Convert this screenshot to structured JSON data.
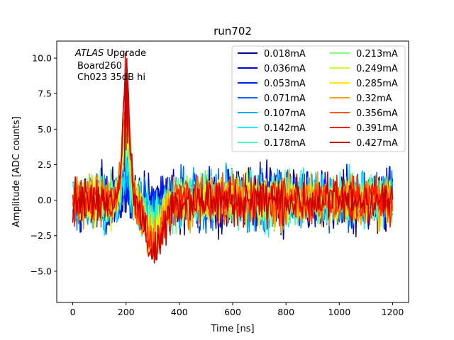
{
  "chart_data": {
    "type": "line",
    "title": "run702",
    "xlabel": "Time [ns]",
    "ylabel": "Amplitude [ADC counts]",
    "xlim": [
      -60,
      1260
    ],
    "ylim": [
      -7.2,
      11.2
    ],
    "xticks": [
      0,
      200,
      400,
      600,
      800,
      1000,
      1200
    ],
    "xtick_labels": [
      "0",
      "200",
      "400",
      "600",
      "800",
      "1000",
      "1200"
    ],
    "yticks": [
      -5.0,
      -2.5,
      0.0,
      2.5,
      5.0,
      7.5,
      10.0
    ],
    "ytick_labels": [
      "−5.0",
      "−2.5",
      "0.0",
      "2.5",
      "5.0",
      "7.5",
      "10.0"
    ],
    "grid": false,
    "legend_location": "upper right",
    "legend_columns": 2,
    "annotation": {
      "italic": "ATLAS",
      "normal": " Upgrade",
      "line2": "Board260",
      "line3": "Ch023 35dB hi"
    },
    "sample_period_ns": 3.125,
    "x_range": [
      0,
      1200
    ],
    "series": [
      {
        "name": "0.018mA",
        "color": "#00008f",
        "peak": 0.3,
        "undershoot": -0.15,
        "noise": 2.3
      },
      {
        "name": "0.036mA",
        "color": "#0000db",
        "peak": 0.7,
        "undershoot": -0.35,
        "noise": 2.3
      },
      {
        "name": "0.053mA",
        "color": "#0018ff",
        "peak": 1.0,
        "undershoot": -0.5,
        "noise": 2.2
      },
      {
        "name": "0.071mA",
        "color": "#0060ff",
        "peak": 1.4,
        "undershoot": -0.65,
        "noise": 2.2
      },
      {
        "name": "0.107mA",
        "color": "#00a8ff",
        "peak": 2.1,
        "undershoot": -1.0,
        "noise": 2.1
      },
      {
        "name": "0.142mA",
        "color": "#00f0ff",
        "peak": 2.8,
        "undershoot": -1.3,
        "noise": 2.1
      },
      {
        "name": "0.178mA",
        "color": "#3affbc",
        "peak": 3.4,
        "undershoot": -1.6,
        "noise": 2.0
      },
      {
        "name": "0.213mA",
        "color": "#7fff79",
        "peak": 4.1,
        "undershoot": -1.9,
        "noise": 2.0
      },
      {
        "name": "0.249mA",
        "color": "#c3ff34",
        "peak": 4.8,
        "undershoot": -2.2,
        "noise": 1.9
      },
      {
        "name": "0.285mA",
        "color": "#ffe600",
        "peak": 5.5,
        "undershoot": -2.5,
        "noise": 1.9
      },
      {
        "name": "0.32mA",
        "color": "#ffa100",
        "peak": 6.2,
        "undershoot": -2.8,
        "noise": 1.8
      },
      {
        "name": "0.356mA",
        "color": "#ff5c00",
        "peak": 6.9,
        "undershoot": -3.1,
        "noise": 1.8
      },
      {
        "name": "0.391mA",
        "color": "#ff1700",
        "peak": 7.6,
        "undershoot": -3.4,
        "noise": 1.8
      },
      {
        "name": "0.427mA",
        "color": "#c80000",
        "peak": 8.3,
        "undershoot": -3.7,
        "noise": 1.8
      }
    ]
  }
}
